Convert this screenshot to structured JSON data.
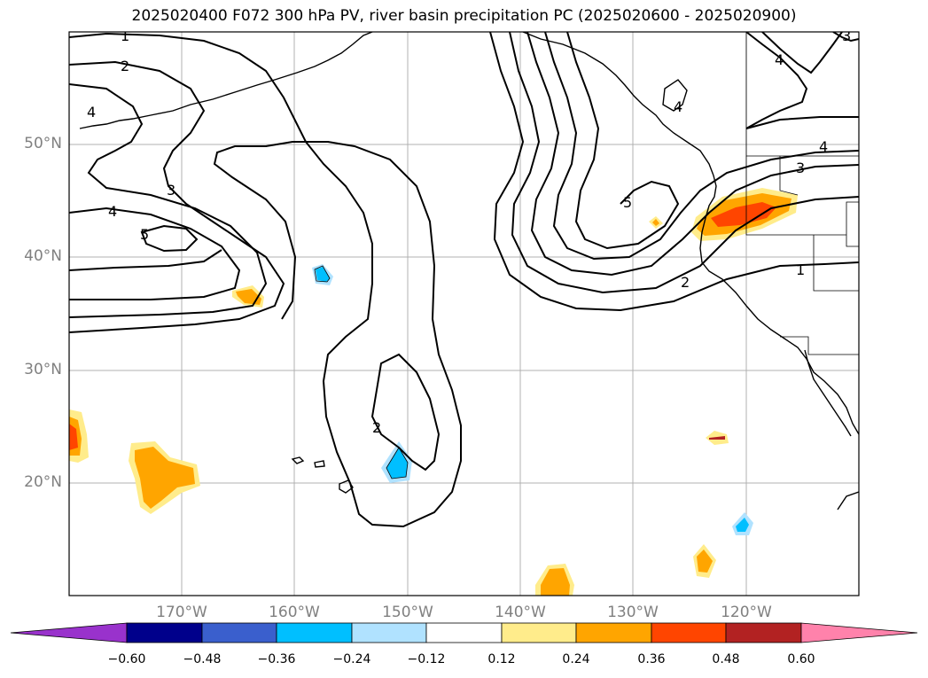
{
  "title": "2025020400 F072 300 hPa PV, river basin precipitation PC (2025020600 - 2025020900)",
  "map": {
    "lat_labels": [
      "50°N",
      "40°N",
      "30°N",
      "20°N"
    ],
    "lon_labels": [
      "170°W",
      "160°W",
      "150°W",
      "140°W",
      "130°W",
      "120°W"
    ],
    "contour_labels": [
      "1",
      "2",
      "4",
      "3",
      "4",
      "5",
      "2",
      "5",
      "4",
      "4",
      "3",
      "4",
      "2",
      "1",
      "3"
    ]
  },
  "colorbar": {
    "ticks": [
      "−0.60",
      "−0.48",
      "−0.36",
      "−0.24",
      "−0.12",
      "0.12",
      "0.24",
      "0.36",
      "0.48",
      "0.60"
    ],
    "colors": [
      "#9932cc",
      "#00008b",
      "#3a5fcd",
      "#00bfff",
      "#b0e2ff",
      "#ffffff",
      "#ffec8b",
      "#ffa500",
      "#ff4500",
      "#b22222",
      "#ff82ab"
    ]
  }
}
